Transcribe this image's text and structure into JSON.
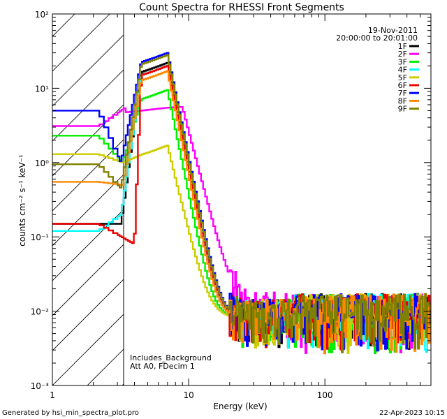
{
  "chart_data": {
    "type": "line",
    "title": "Count Spectra for RHESSI Front Segments",
    "xlabel": "Energy (keV)",
    "ylabel": "counts cm⁻² s⁻¹ keV⁻¹",
    "x_scale": "log",
    "y_scale": "log",
    "xlim": [
      1,
      600
    ],
    "ylim": [
      0.001,
      100
    ],
    "x_ticks": [
      {
        "value": 1,
        "label": "1"
      },
      {
        "value": 10,
        "label": "10"
      },
      {
        "value": 100,
        "label": "100"
      }
    ],
    "y_ticks": [
      {
        "value": 0.001,
        "label": "10⁻³"
      },
      {
        "value": 0.01,
        "label": "10⁻²"
      },
      {
        "value": 0.1,
        "label": "10⁻¹"
      },
      {
        "value": 1,
        "label": "10⁰"
      },
      {
        "value": 10,
        "label": "10¹"
      },
      {
        "value": 100,
        "label": "10²"
      }
    ],
    "excluded_region_max": 3,
    "date": "19-Nov-2011",
    "time_range": "20:00:00 to 20:01:00",
    "annotations": [
      "Includes_Background",
      "Att A0, FDecim 1"
    ],
    "footer_left": "Generated by hsi_min_spectra_plot.pro",
    "footer_right": "22-Apr-2023 10:15",
    "series": [
      {
        "name": "1F",
        "color": "#000000",
        "low": 0.15,
        "plateau": 0.15,
        "peak": 22,
        "rise": 3.2
      },
      {
        "name": "2F",
        "color": "#ff00ff",
        "low": 3.1,
        "plateau": 5.6,
        "peak": 5.6,
        "rise": 3.5
      },
      {
        "name": "3F",
        "color": "#00ee00",
        "low": 2.3,
        "plateau": 1.0,
        "peak": 9.5,
        "rise": 3.3
      },
      {
        "name": "4F",
        "color": "#00ffff",
        "low": 0.12,
        "plateau": 0.2,
        "peak": 20,
        "rise": 3.2
      },
      {
        "name": "5F",
        "color": "#cccc00",
        "low": 1.3,
        "plateau": 1.0,
        "peak": 1.7,
        "rise": 3.3
      },
      {
        "name": "6F",
        "color": "#ee0000",
        "low": 0.15,
        "plateau": 0.08,
        "peak": 20,
        "rise": 4.0
      },
      {
        "name": "7F",
        "color": "#0000ff",
        "low": 5.0,
        "plateau": 1.0,
        "peak": 30,
        "rise": 3.2
      },
      {
        "name": "8F",
        "color": "#ff8800",
        "low": 0.55,
        "plateau": 0.5,
        "peak": 17,
        "rise": 3.3
      },
      {
        "name": "9F",
        "color": "#808000",
        "low": 0.95,
        "plateau": 0.45,
        "peak": 28,
        "rise": 3.2
      }
    ]
  }
}
